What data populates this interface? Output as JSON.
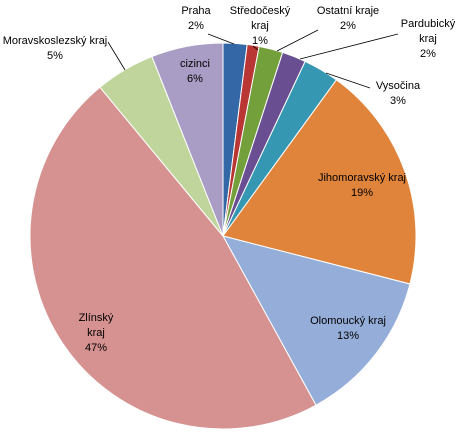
{
  "chart_data": {
    "type": "pie",
    "categories": [
      "Praha",
      "Středočeský kraj",
      "Ostatní kraje",
      "Pardubický kraj",
      "Vysočina",
      "Jihomoravský kraj",
      "Olomoucký kraj",
      "Zlínský kraj",
      "Moravskoslezský kraj",
      "cizinci"
    ],
    "values": [
      2,
      1,
      2,
      2,
      3,
      19,
      13,
      47,
      5,
      6
    ],
    "value_labels": [
      "2%",
      "1%",
      "2%",
      "2%",
      "3%",
      "19%",
      "13%",
      "47%",
      "5%",
      "6%"
    ],
    "colors": [
      "#3467a6",
      "#b93634",
      "#74a03c",
      "#6a4e92",
      "#3597b2",
      "#e0843c",
      "#95aed9",
      "#d59291",
      "#bfd59c",
      "#a99dc5"
    ]
  }
}
